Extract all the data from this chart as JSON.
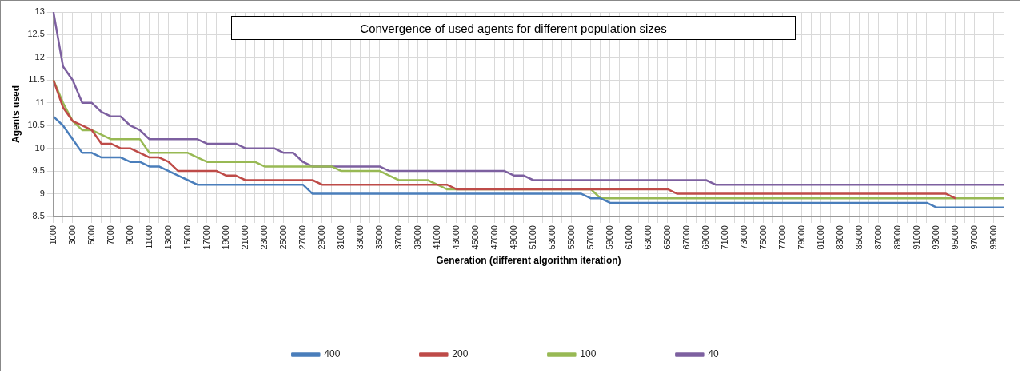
{
  "chart_data": {
    "type": "line",
    "title": "Convergence of used agents for different population sizes",
    "xlabel": "Generation (different algorithm iteration)",
    "ylabel": "Agents used",
    "categories": [
      "1000",
      null,
      "3000",
      null,
      "5000",
      null,
      "7000",
      null,
      "9000",
      null,
      "11000",
      null,
      "13000",
      null,
      "15000",
      null,
      "17000",
      null,
      "19000",
      null,
      "21000",
      null,
      "23000",
      null,
      "25000",
      null,
      "27000",
      null,
      "29000",
      null,
      "31000",
      null,
      "33000",
      null,
      "35000",
      null,
      "37000",
      null,
      "39000",
      null,
      "41000",
      null,
      "43000",
      null,
      "45000",
      null,
      "47000",
      null,
      "49000",
      null,
      "51000",
      null,
      "53000",
      null,
      "55000",
      null,
      "57000",
      null,
      "59000",
      null,
      "61000",
      null,
      "63000",
      null,
      "65000",
      null,
      "67000",
      null,
      "69000",
      null,
      "71000",
      null,
      "73000",
      null,
      "75000",
      null,
      "77000",
      null,
      "79000",
      null,
      "81000",
      null,
      "83000",
      null,
      "85000",
      null,
      "87000",
      null,
      "89000",
      null,
      "91000",
      null,
      "93000",
      null,
      "95000",
      null,
      "97000",
      null,
      "99000",
      null
    ],
    "series": [
      {
        "name": "400",
        "color": "#4a7ebb",
        "values": [
          10.7,
          10.5,
          10.2,
          9.9,
          9.9,
          9.8,
          9.8,
          9.8,
          9.7,
          9.7,
          9.6,
          9.6,
          9.5,
          9.4,
          9.3,
          9.2,
          9.2,
          9.2,
          9.2,
          9.2,
          9.2,
          9.2,
          9.2,
          9.2,
          9.2,
          9.2,
          9.2,
          9.0,
          9.0,
          9.0,
          9.0,
          9.0,
          9.0,
          9.0,
          9.0,
          9.0,
          9.0,
          9.0,
          9.0,
          9.0,
          9.0,
          9.0,
          9.0,
          9.0,
          9.0,
          9.0,
          9.0,
          9.0,
          9.0,
          9.0,
          9.0,
          9.0,
          9.0,
          9.0,
          9.0,
          9.0,
          8.9,
          8.9,
          8.8,
          8.8,
          8.8,
          8.8,
          8.8,
          8.8,
          8.8,
          8.8,
          8.8,
          8.8,
          8.8,
          8.8,
          8.8,
          8.8,
          8.8,
          8.8,
          8.8,
          8.8,
          8.8,
          8.8,
          8.8,
          8.8,
          8.8,
          8.8,
          8.8,
          8.8,
          8.8,
          8.8,
          8.8,
          8.8,
          8.8,
          8.8,
          8.8,
          8.8,
          8.7,
          8.7,
          8.7,
          8.7,
          8.7,
          8.7,
          8.7,
          8.7
        ]
      },
      {
        "name": "200",
        "color": "#be4b48",
        "values": [
          11.5,
          10.9,
          10.6,
          10.5,
          10.4,
          10.1,
          10.1,
          10.0,
          10.0,
          9.9,
          9.8,
          9.8,
          9.7,
          9.5,
          9.5,
          9.5,
          9.5,
          9.5,
          9.4,
          9.4,
          9.3,
          9.3,
          9.3,
          9.3,
          9.3,
          9.3,
          9.3,
          9.3,
          9.2,
          9.2,
          9.2,
          9.2,
          9.2,
          9.2,
          9.2,
          9.2,
          9.2,
          9.2,
          9.2,
          9.2,
          9.2,
          9.2,
          9.1,
          9.1,
          9.1,
          9.1,
          9.1,
          9.1,
          9.1,
          9.1,
          9.1,
          9.1,
          9.1,
          9.1,
          9.1,
          9.1,
          9.1,
          9.1,
          9.1,
          9.1,
          9.1,
          9.1,
          9.1,
          9.1,
          9.1,
          9.0,
          9.0,
          9.0,
          9.0,
          9.0,
          9.0,
          9.0,
          9.0,
          9.0,
          9.0,
          9.0,
          9.0,
          9.0,
          9.0,
          9.0,
          9.0,
          9.0,
          9.0,
          9.0,
          9.0,
          9.0,
          9.0,
          9.0,
          9.0,
          9.0,
          9.0,
          9.0,
          9.0,
          9.0,
          8.9,
          null,
          null,
          null,
          null,
          null
        ]
      },
      {
        "name": "100",
        "color": "#98b954",
        "values": [
          11.5,
          11.0,
          10.6,
          10.4,
          10.4,
          10.3,
          10.2,
          10.2,
          10.2,
          10.2,
          9.9,
          9.9,
          9.9,
          9.9,
          9.9,
          9.8,
          9.7,
          9.7,
          9.7,
          9.7,
          9.7,
          9.7,
          9.6,
          9.6,
          9.6,
          9.6,
          9.6,
          9.6,
          9.6,
          9.6,
          9.5,
          9.5,
          9.5,
          9.5,
          9.5,
          9.4,
          9.3,
          9.3,
          9.3,
          9.3,
          9.2,
          9.1,
          9.1,
          9.1,
          9.1,
          9.1,
          9.1,
          9.1,
          9.1,
          9.1,
          9.1,
          9.1,
          9.1,
          9.1,
          9.1,
          9.1,
          9.1,
          8.9,
          8.9,
          8.9,
          8.9,
          8.9,
          8.9,
          8.9,
          8.9,
          8.9,
          8.9,
          8.9,
          8.9,
          8.9,
          8.9,
          8.9,
          8.9,
          8.9,
          8.9,
          8.9,
          8.9,
          8.9,
          8.9,
          8.9,
          8.9,
          8.9,
          8.9,
          8.9,
          8.9,
          8.9,
          8.9,
          8.9,
          8.9,
          8.9,
          8.9,
          8.9,
          8.9,
          8.9,
          8.9,
          8.9,
          8.9,
          8.9,
          8.9,
          8.9
        ]
      },
      {
        "name": "40",
        "color": "#7d60a0",
        "values": [
          13.0,
          11.8,
          11.5,
          11.0,
          11.0,
          10.8,
          10.7,
          10.7,
          10.5,
          10.4,
          10.2,
          10.2,
          10.2,
          10.2,
          10.2,
          10.2,
          10.1,
          10.1,
          10.1,
          10.1,
          10.0,
          10.0,
          10.0,
          10.0,
          9.9,
          9.9,
          9.7,
          9.6,
          9.6,
          9.6,
          9.6,
          9.6,
          9.6,
          9.6,
          9.6,
          9.5,
          9.5,
          9.5,
          9.5,
          9.5,
          9.5,
          9.5,
          9.5,
          9.5,
          9.5,
          9.5,
          9.5,
          9.5,
          9.4,
          9.4,
          9.3,
          9.3,
          9.3,
          9.3,
          9.3,
          9.3,
          9.3,
          9.3,
          9.3,
          9.3,
          9.3,
          9.3,
          9.3,
          9.3,
          9.3,
          9.3,
          9.3,
          9.3,
          9.3,
          9.2,
          9.2,
          9.2,
          9.2,
          9.2,
          9.2,
          9.2,
          9.2,
          9.2,
          9.2,
          9.2,
          9.2,
          9.2,
          9.2,
          9.2,
          9.2,
          9.2,
          9.2,
          9.2,
          9.2,
          9.2,
          9.2,
          9.2,
          9.2,
          9.2,
          9.2,
          9.2,
          9.2,
          9.2,
          9.2,
          9.2
        ]
      }
    ],
    "ylim": [
      8.5,
      13
    ],
    "yticks": [
      8.5,
      9,
      9.5,
      10,
      10.5,
      11,
      11.5,
      12,
      12.5,
      13
    ],
    "grid": true,
    "legend": "bottom",
    "marker": "none",
    "line_style": "solid"
  }
}
